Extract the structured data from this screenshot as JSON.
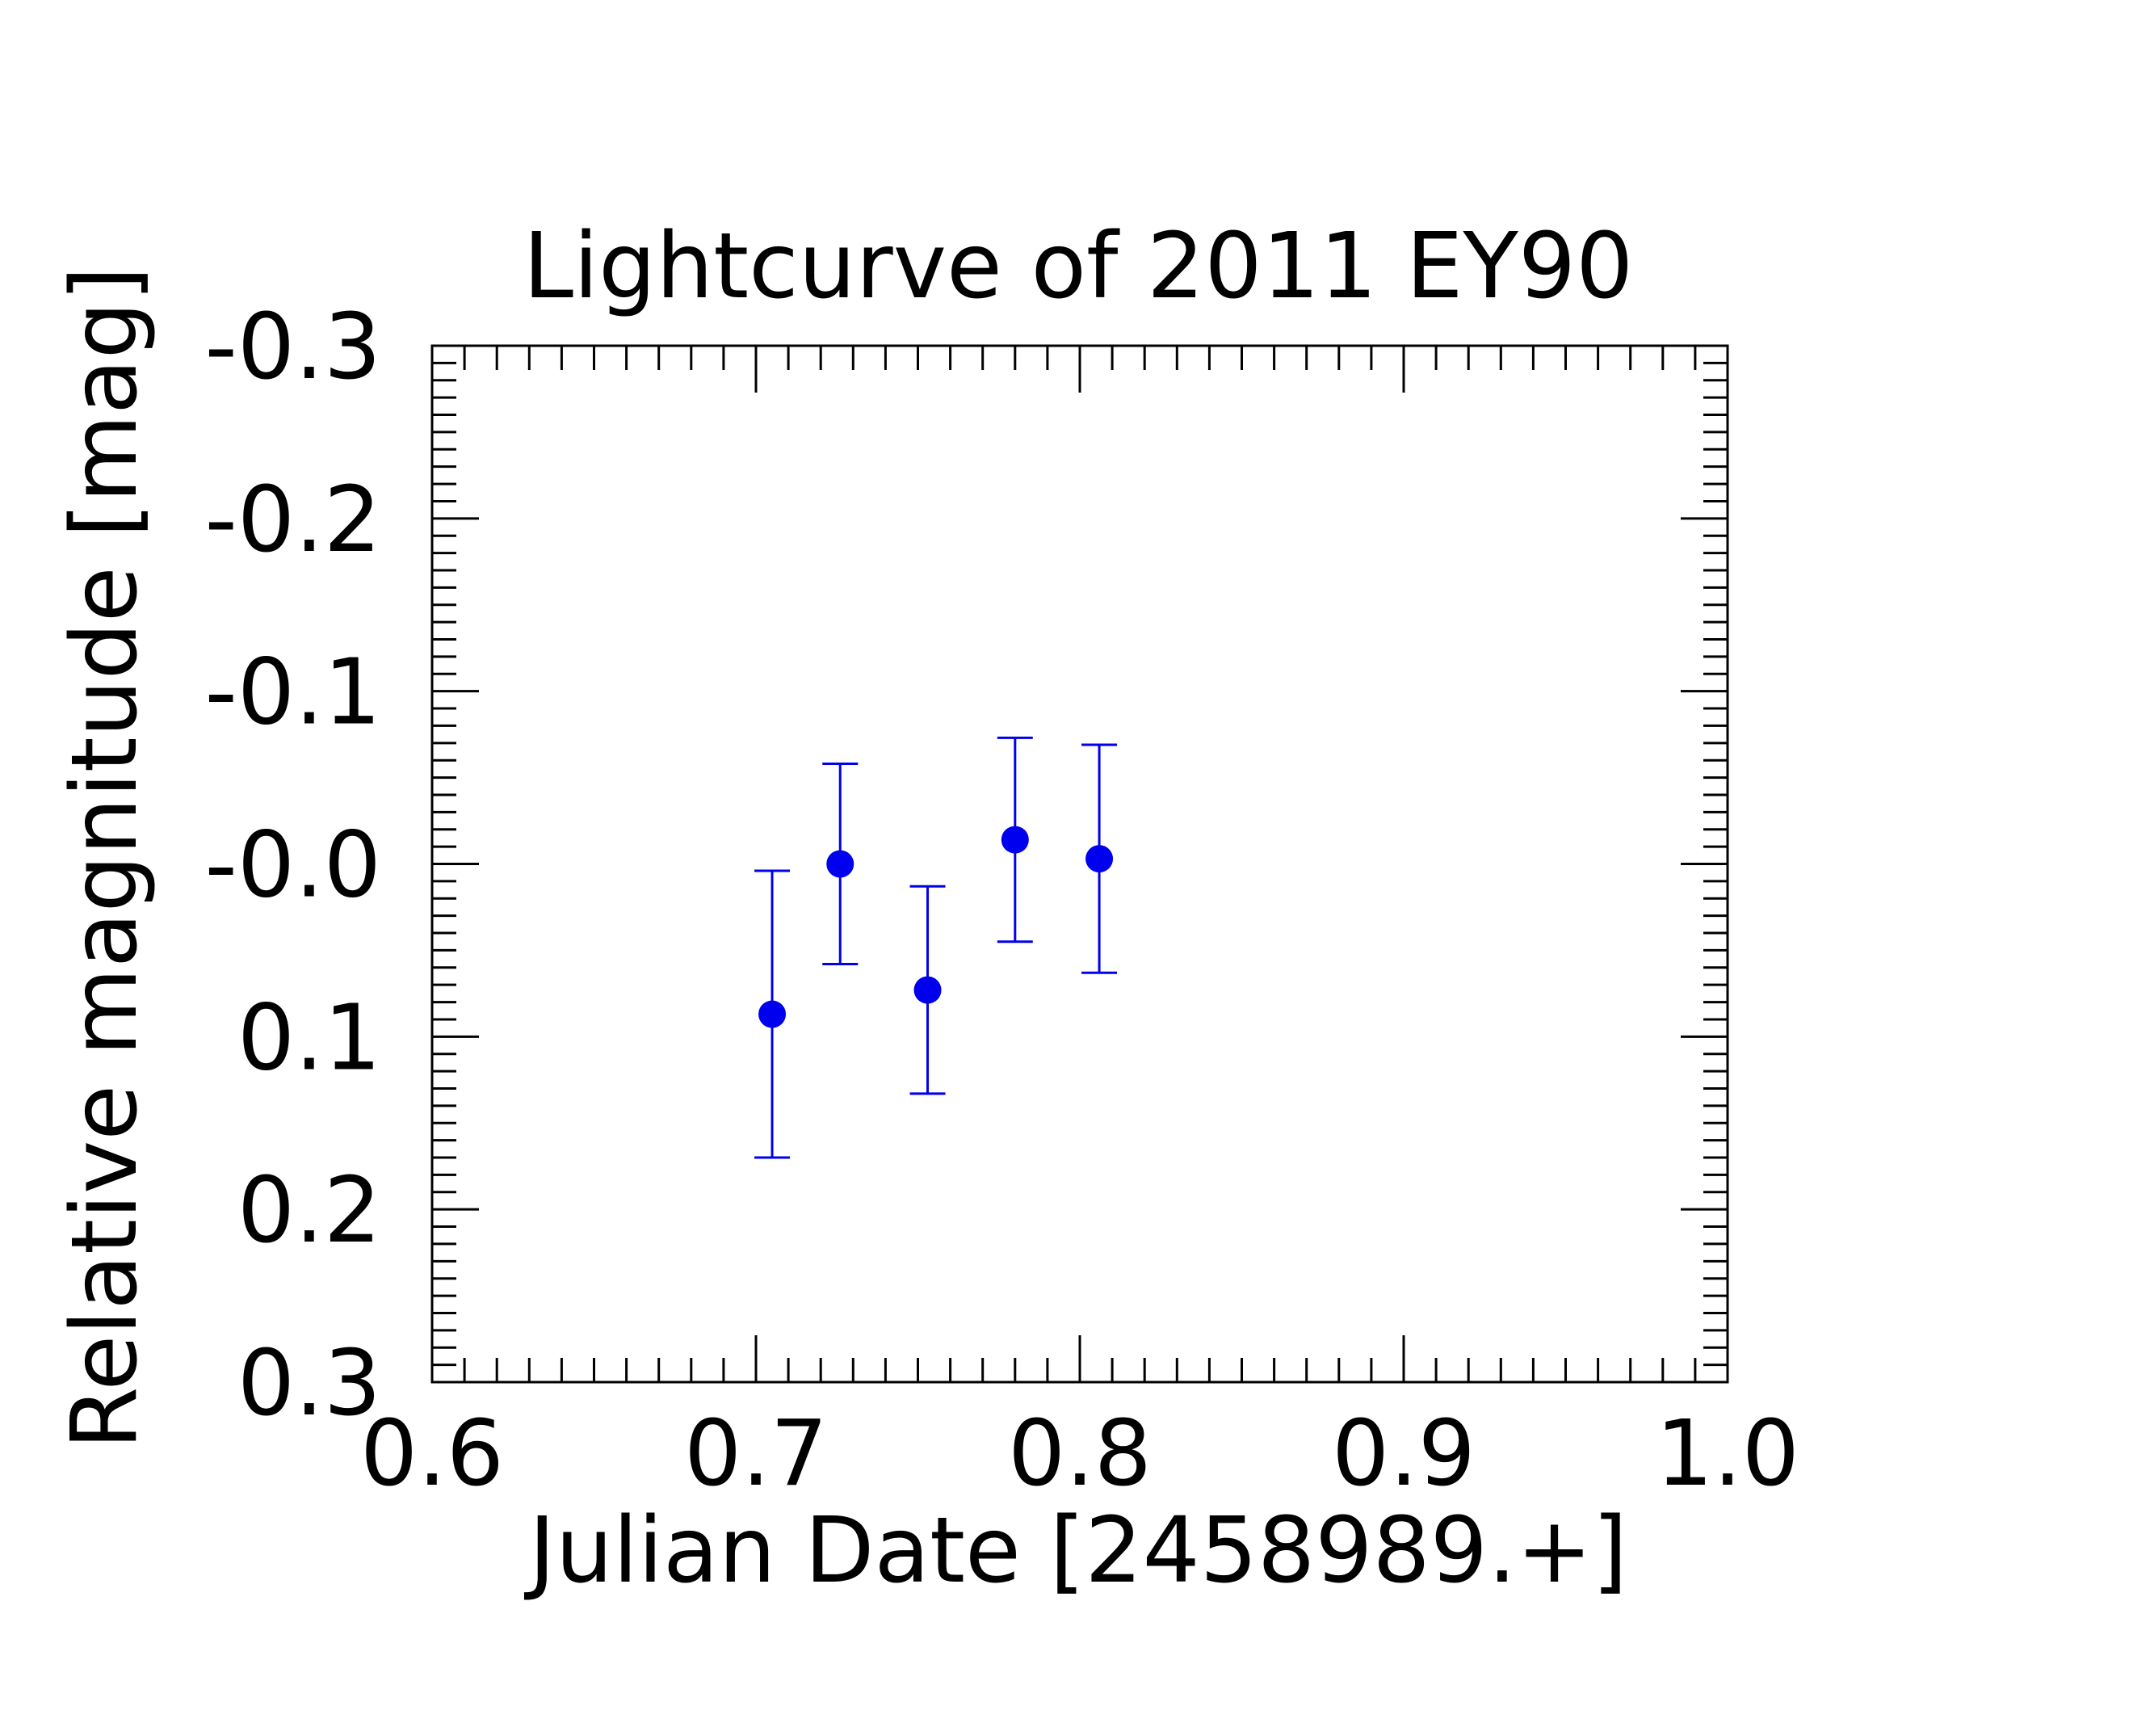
{
  "chart_data": {
    "type": "scatter",
    "title": "Lightcurve of 2011 EY90",
    "xlabel": "Julian Date [2458989.+]",
    "ylabel": "Relative magnitude [mag]",
    "xlim": [
      0.6,
      1.0
    ],
    "ylim": [
      0.3,
      -0.3
    ],
    "y_inverted": true,
    "x_ticks": [
      0.6,
      0.7,
      0.8,
      0.9,
      1.0
    ],
    "x_tick_labels": [
      "0.6",
      "0.7",
      "0.8",
      "0.9",
      "1.0"
    ],
    "y_ticks": [
      -0.3,
      -0.2,
      -0.1,
      0.0,
      0.1,
      0.2,
      0.3
    ],
    "y_tick_labels": [
      "-0.3",
      "-0.2",
      "-0.1",
      "-0.0",
      "0.1",
      "0.2",
      "0.3"
    ],
    "grid": false,
    "legend": false,
    "marker_color": "#0000ee",
    "series": [
      {
        "x": [
          0.705,
          0.726,
          0.753,
          0.78,
          0.806
        ],
        "y": [
          0.087,
          0.0,
          0.073,
          -0.014,
          -0.003
        ],
        "yerr": [
          0.083,
          0.058,
          0.06,
          0.059,
          0.066
        ]
      }
    ]
  }
}
